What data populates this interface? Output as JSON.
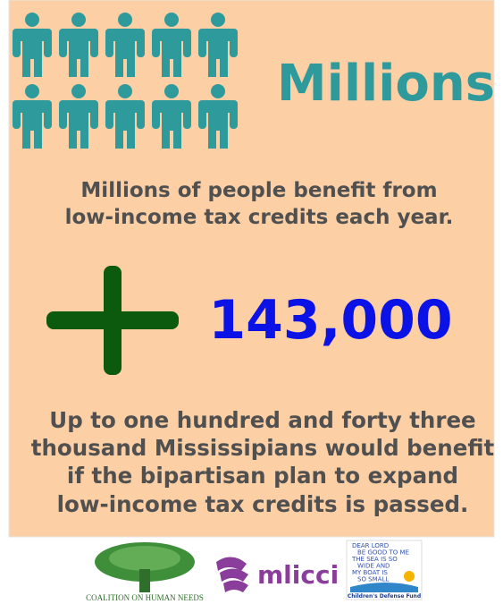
{
  "headline": "Millions",
  "intro": {
    "lines": [
      "Millions of people benefit from",
      "low-income tax credits each year."
    ]
  },
  "figure": "143,000",
  "detail": {
    "lines": [
      "Up to one hundred and forty three",
      "thousand Mississipians would benefit",
      "if the bipartisan plan to expand",
      "low-income tax credits is passed."
    ]
  },
  "logos": {
    "coalition": "Coalition on Human Needs",
    "mlicci": "mlicci",
    "cdf_art": [
      "Dear Lord",
      "be good to me",
      "the sea is so",
      "wide and",
      "my boat is",
      "so small"
    ],
    "cdf": "Children's Defense Fund"
  }
}
